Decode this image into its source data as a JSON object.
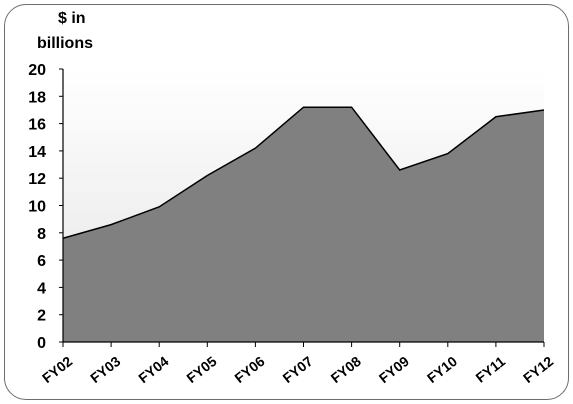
{
  "chart_data": {
    "type": "area",
    "title": "",
    "ylabel_line1": "$ in",
    "ylabel_line2": "billions",
    "xlabel": "",
    "categories": [
      "FY02",
      "FY03",
      "FY04",
      "FY05",
      "FY06",
      "FY07",
      "FY08",
      "FY09",
      "FY10",
      "FY11",
      "FY12"
    ],
    "values": [
      7.6,
      8.6,
      9.9,
      12.2,
      14.2,
      17.2,
      17.2,
      12.6,
      13.8,
      16.5,
      17.0
    ],
    "ylim": [
      0,
      20
    ],
    "yticks": [
      "0",
      "2",
      "4",
      "6",
      "8",
      "10",
      "12",
      "14",
      "16",
      "18",
      "20"
    ],
    "grid": false,
    "legend": "none",
    "colors": {
      "area_fill": "#808080",
      "plot_background_top": "#ffffff",
      "plot_background_bottom": "#e4e4e4",
      "line": "#000000"
    }
  }
}
